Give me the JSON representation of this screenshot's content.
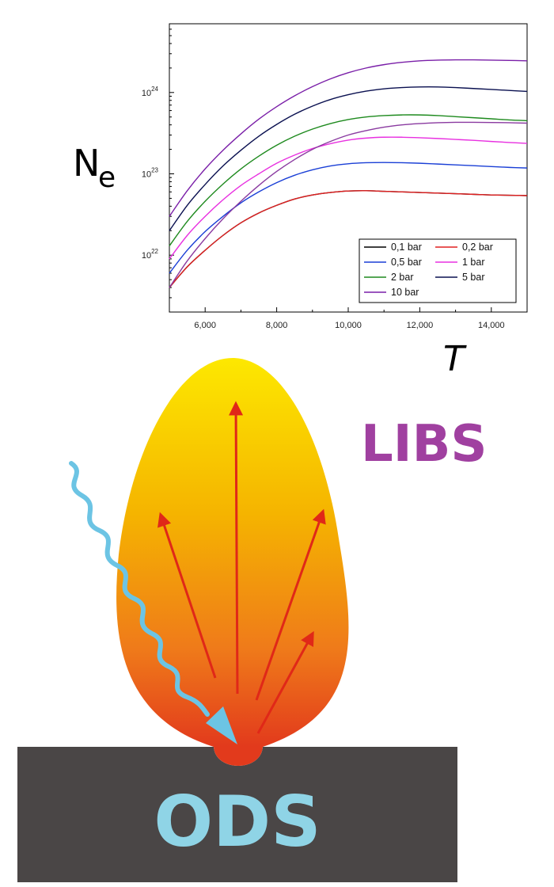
{
  "chart_data": {
    "type": "line",
    "ylabel": "N",
    "ylabel_subscript": "e",
    "xlabel": "T",
    "y_scale": "log",
    "xlim": [
      5000,
      15000
    ],
    "ylim": [
      2e+21,
      7e+24
    ],
    "x_tick_labels": [
      "6,000",
      "8,000",
      "10,000",
      "12,000",
      "14,000"
    ],
    "x_tick_values": [
      6000,
      8000,
      10000,
      12000,
      14000
    ],
    "y_ticks": [
      {
        "value": 1e+22,
        "base": "10",
        "exp": "22"
      },
      {
        "value": 1e+23,
        "base": "10",
        "exp": "23"
      },
      {
        "value": 1e+24,
        "base": "10",
        "exp": "24"
      }
    ],
    "legend_position": "bottom-right",
    "x": [
      5000,
      5500,
      6000,
      6500,
      7000,
      7500,
      8000,
      8500,
      9000,
      9500,
      10000,
      10500,
      11000,
      11500,
      12000,
      12500,
      13000,
      13500,
      14000,
      14500,
      15000
    ],
    "series": [
      {
        "name": "0,1 bar",
        "color": "#000000",
        "values": [
          4e+21,
          7.2e+21,
          1.15e+22,
          1.75e+22,
          2.5e+22,
          3.3e+22,
          4.1e+22,
          4.9e+22,
          5.5e+22,
          5.9e+22,
          6.15e+22,
          6.2e+22,
          6.1e+22,
          6e+22,
          5.9e+22,
          5.8e+22,
          5.7e+22,
          5.6e+22,
          5.5e+22,
          5.45e+22,
          5.4e+22
        ]
      },
      {
        "name": "0,2 bar",
        "color": "#e02020",
        "values": [
          4e+21,
          7.2e+21,
          1.15e+22,
          1.75e+22,
          2.5e+22,
          3.3e+22,
          4.1e+22,
          4.9e+22,
          5.5e+22,
          5.9e+22,
          6.15e+22,
          6.2e+22,
          6.1e+22,
          6e+22,
          5.9e+22,
          5.8e+22,
          5.7e+22,
          5.6e+22,
          5.5e+22,
          5.45e+22,
          5.4e+22
        ]
      },
      {
        "name": "0,5 bar",
        "color": "#1a3fd6",
        "values": [
          6e+21,
          1.15e+22,
          1.95e+22,
          3e+22,
          4.4e+22,
          6e+22,
          7.8e+22,
          9.6e+22,
          1.12e+23,
          1.25e+23,
          1.33e+23,
          1.37e+23,
          1.38e+23,
          1.37e+23,
          1.35e+23,
          1.32e+23,
          1.29e+23,
          1.26e+23,
          1.23e+23,
          1.2e+23,
          1.18e+23
        ]
      },
      {
        "name": "1 bar",
        "color": "#e830e0",
        "values": [
          9e+21,
          1.75e+22,
          3e+22,
          4.8e+22,
          7.2e+22,
          1e+23,
          1.35e+23,
          1.7e+23,
          2.05e+23,
          2.35e+23,
          2.6e+23,
          2.75e+23,
          2.82e+23,
          2.82e+23,
          2.78e+23,
          2.72e+23,
          2.65e+23,
          2.58e+23,
          2.5e+23,
          2.43e+23,
          2.37e+23
        ]
      },
      {
        "name": "2 bar",
        "color": "#1e8a1e",
        "values": [
          1.3e+22,
          2.6e+22,
          4.6e+22,
          7.5e+22,
          1.15e+23,
          1.65e+23,
          2.25e+23,
          2.9e+23,
          3.55e+23,
          4.15e+23,
          4.65e+23,
          5e+23,
          5.2e+23,
          5.3e+23,
          5.3e+23,
          5.2e+23,
          5.05e+23,
          4.9e+23,
          4.75e+23,
          4.6e+23,
          4.5e+23
        ]
      },
      {
        "name": "5 bar",
        "color": "#0a1050",
        "values": [
          2e+22,
          4.1e+22,
          7.4e+22,
          1.25e+23,
          1.95e+23,
          2.9e+23,
          4.05e+23,
          5.4e+23,
          6.8e+23,
          8.2e+23,
          9.4e+23,
          1.04e+24,
          1.11e+24,
          1.15e+24,
          1.17e+24,
          1.17e+24,
          1.15e+24,
          1.12e+24,
          1.09e+24,
          1.06e+24,
          1.03e+24
        ]
      },
      {
        "name": "10 bar",
        "color": "#7a1fa8",
        "values": [
          3e+22,
          6.2e+22,
          1.15e+23,
          1.95e+23,
          3.1e+23,
          4.7e+23,
          6.7e+23,
          9.1e+23,
          1.18e+24,
          1.47e+24,
          1.75e+24,
          2e+24,
          2.2e+24,
          2.35e+24,
          2.45e+24,
          2.5e+24,
          2.52e+24,
          2.52e+24,
          2.5e+24,
          2.48e+24,
          2.45e+24
        ]
      },
      {
        "name": "",
        "color": "#8a3aa0",
        "values": [
          4e+21,
          8.5e+21,
          1.6e+22,
          2.8e+22,
          4.6e+22,
          7.2e+22,
          1.07e+23,
          1.5e+23,
          2e+23,
          2.5e+23,
          3e+23,
          3.4e+23,
          3.75e+23,
          4e+23,
          4.15e+23,
          4.25e+23,
          4.3e+23,
          4.3e+23,
          4.28e+23,
          4.25e+23,
          4.2e+23
        ]
      }
    ]
  },
  "diagram": {
    "plume_label": "LIBS",
    "plume_label_color": "#a040a0",
    "target_label": "ODS",
    "target_label_color": "#8fd4e6",
    "target_color": "#4a4646",
    "laser_color": "#6cc4e4",
    "emission_arrow_color": "#e02818",
    "plume_gradient": [
      "#fde800",
      "#f5b400",
      "#ef7a1a",
      "#e23a1c"
    ]
  }
}
